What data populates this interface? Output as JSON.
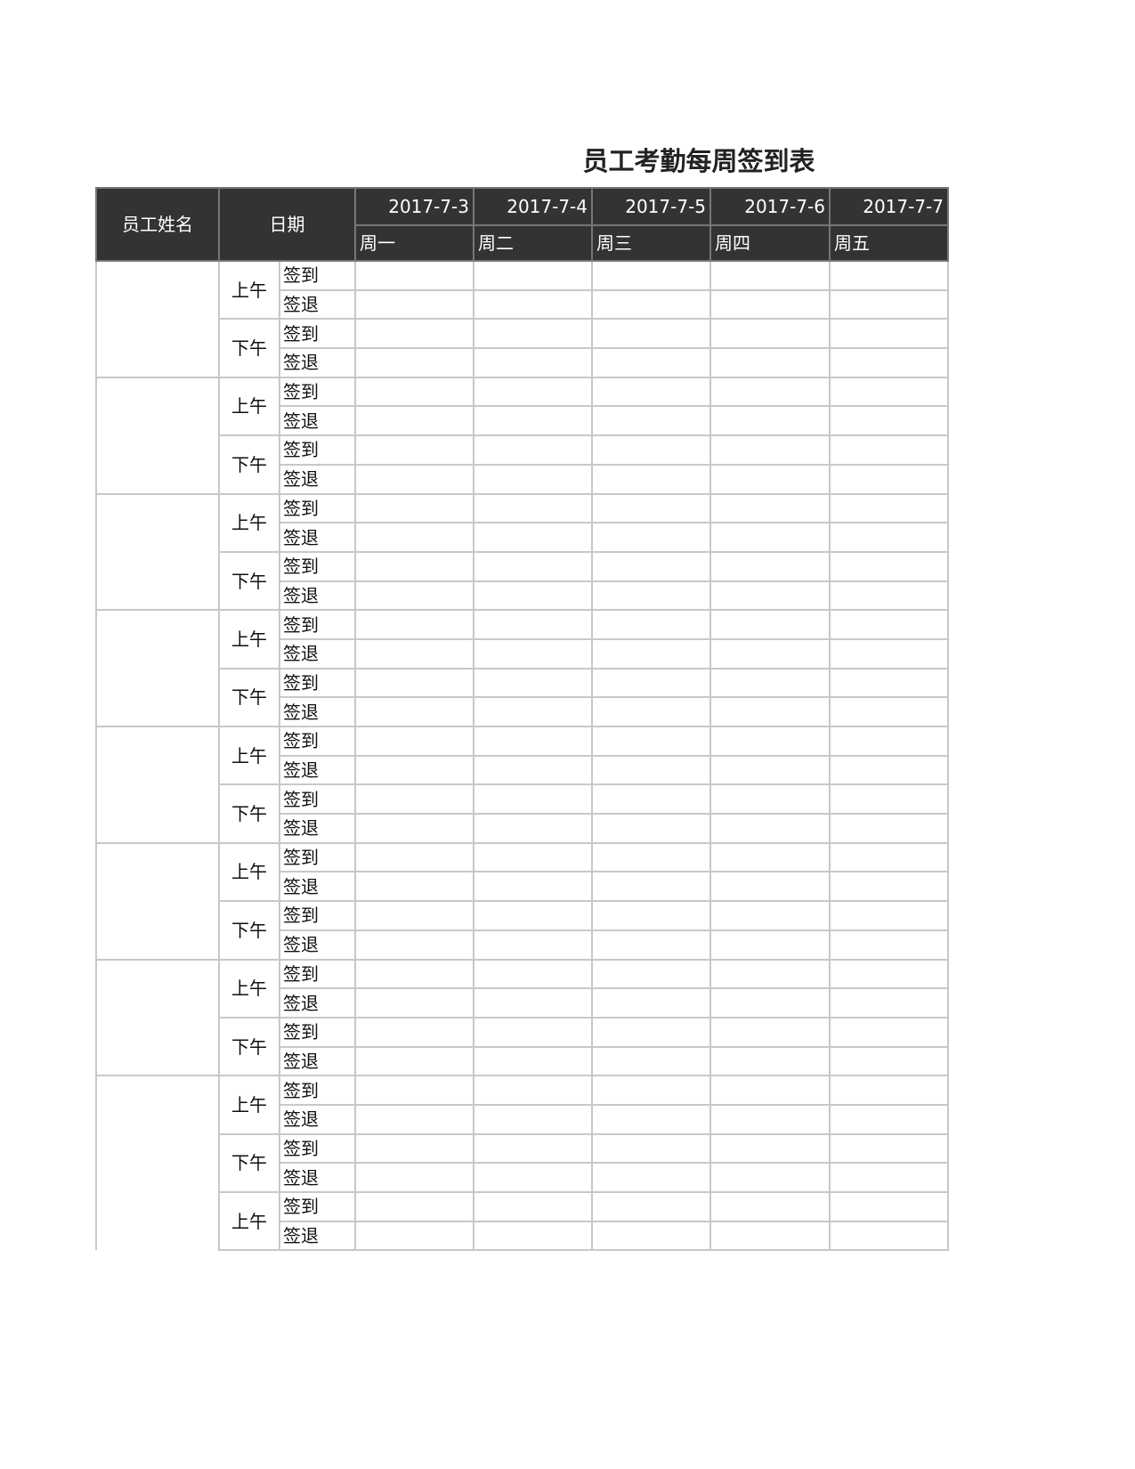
{
  "title": "员工考勤每周签到表",
  "header": {
    "name_col": "员工姓名",
    "date_col": "日期",
    "days": [
      {
        "date": "2017-7-3",
        "weekday": "周一"
      },
      {
        "date": "2017-7-4",
        "weekday": "周二"
      },
      {
        "date": "2017-7-5",
        "weekday": "周三"
      },
      {
        "date": "2017-7-6",
        "weekday": "周四"
      },
      {
        "date": "2017-7-7",
        "weekday": "周五"
      }
    ]
  },
  "colors": {
    "header_bg": "#333333",
    "header_text": "#ffffff",
    "grid": "#c8c8c8"
  },
  "employees": [
    {
      "name": "",
      "sessions": [
        {
          "period": "上午",
          "rows": [
            "签到",
            "签退"
          ]
        },
        {
          "period": "下午",
          "rows": [
            "签到",
            "签退"
          ]
        }
      ]
    },
    {
      "name": "",
      "sessions": [
        {
          "period": "上午",
          "rows": [
            "签到",
            "签退"
          ]
        },
        {
          "period": "下午",
          "rows": [
            "签到",
            "签退"
          ]
        }
      ]
    },
    {
      "name": "",
      "sessions": [
        {
          "period": "上午",
          "rows": [
            "签到",
            "签退"
          ]
        },
        {
          "period": "下午",
          "rows": [
            "签到",
            "签退"
          ]
        }
      ]
    },
    {
      "name": "",
      "sessions": [
        {
          "period": "上午",
          "rows": [
            "签到",
            "签退"
          ]
        },
        {
          "period": "下午",
          "rows": [
            "签到",
            "签退"
          ]
        }
      ]
    },
    {
      "name": "",
      "sessions": [
        {
          "period": "上午",
          "rows": [
            "签到",
            "签退"
          ]
        },
        {
          "period": "下午",
          "rows": [
            "签到",
            "签退"
          ]
        }
      ]
    },
    {
      "name": "",
      "sessions": [
        {
          "period": "上午",
          "rows": [
            "签到",
            "签退"
          ]
        },
        {
          "period": "下午",
          "rows": [
            "签到",
            "签退"
          ]
        }
      ]
    },
    {
      "name": "",
      "sessions": [
        {
          "period": "上午",
          "rows": [
            "签到",
            "签退"
          ]
        },
        {
          "period": "下午",
          "rows": [
            "签到",
            "签退"
          ]
        }
      ]
    },
    {
      "name": "",
      "sessions": [
        {
          "period": "上午",
          "rows": [
            "签到",
            "签退"
          ]
        },
        {
          "period": "下午",
          "rows": [
            "签到",
            "签退"
          ]
        },
        {
          "period": "上午",
          "rows": [
            "签到",
            "签退"
          ]
        }
      ]
    }
  ]
}
